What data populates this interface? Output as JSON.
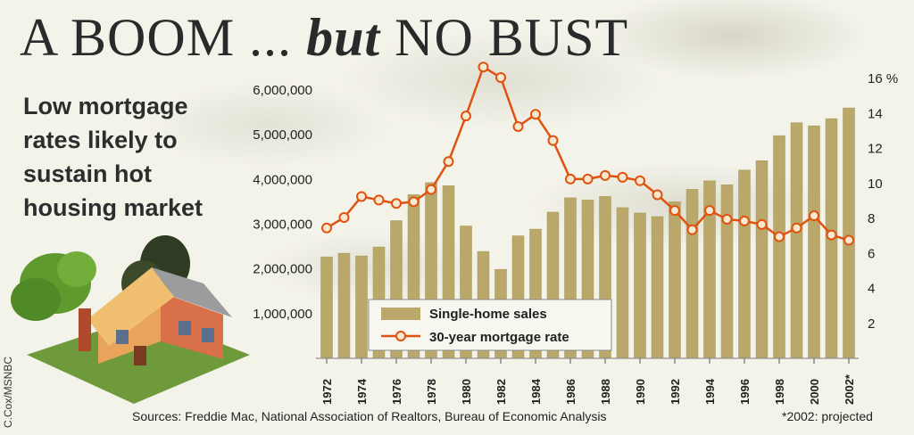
{
  "headline": {
    "part1": "A BOOM ... ",
    "part2": "but",
    "part3": " NO BUST"
  },
  "subhead": "Low mortgage rates likely to sustain hot housing market",
  "sources": "Sources: Freddie Mac, National Association of Realtors, Bureau of Economic Analysis",
  "projected_note": "*2002: projected",
  "credit": "C.Cox/MSNBC",
  "colors": {
    "bar": "#b9a86a",
    "bar_edge": "#a8965a",
    "line": "#e0520f",
    "marker_fill": "#f6e9cf"
  },
  "chart_data": {
    "type": "bar",
    "categories": [
      "1972",
      "1973",
      "1974",
      "1975",
      "1976",
      "1977",
      "1978",
      "1979",
      "1980",
      "1981",
      "1982",
      "1983",
      "1984",
      "1985",
      "1986",
      "1987",
      "1988",
      "1989",
      "1990",
      "1991",
      "1992",
      "1993",
      "1994",
      "1995",
      "1996",
      "1997",
      "1998",
      "1999",
      "2000",
      "2001",
      "2002"
    ],
    "x_tick_labels": [
      "1972",
      "1974",
      "1976",
      "1978",
      "1980",
      "1982",
      "1984",
      "1986",
      "1988",
      "1990",
      "1992",
      "1994",
      "1996",
      "1998",
      "2000",
      "2002*"
    ],
    "series": [
      {
        "name": "Single-home sales",
        "type": "bar",
        "axis": "left",
        "values": [
          2250000,
          2330000,
          2270000,
          2470000,
          3060000,
          3640000,
          3910000,
          3840000,
          2940000,
          2370000,
          1970000,
          2720000,
          2870000,
          3250000,
          3570000,
          3520000,
          3600000,
          3350000,
          3230000,
          3150000,
          3480000,
          3760000,
          3950000,
          3860000,
          4190000,
          4400000,
          4960000,
          5250000,
          5180000,
          5340000,
          5580000
        ]
      },
      {
        "name": "30-year mortgage rate",
        "type": "line",
        "axis": "right",
        "values": [
          7.4,
          8.0,
          9.2,
          9.0,
          8.8,
          8.9,
          9.6,
          11.2,
          13.8,
          16.6,
          16.0,
          13.2,
          13.9,
          12.4,
          10.2,
          10.2,
          10.4,
          10.3,
          10.1,
          9.3,
          8.4,
          7.3,
          8.4,
          7.9,
          7.8,
          7.6,
          6.9,
          7.4,
          8.1,
          7.0,
          6.7
        ]
      }
    ],
    "left_axis": {
      "ticks": [
        "1,000,000",
        "2,000,000",
        "3,000,000",
        "4,000,000",
        "5,000,000",
        "6,000,000"
      ],
      "range": [
        0,
        6000000
      ]
    },
    "right_axis": {
      "ticks": [
        "2",
        "4",
        "6",
        "8",
        "10",
        "12",
        "14",
        "16 %"
      ],
      "range": [
        0,
        16
      ]
    },
    "legend_position": "bottom-center"
  }
}
